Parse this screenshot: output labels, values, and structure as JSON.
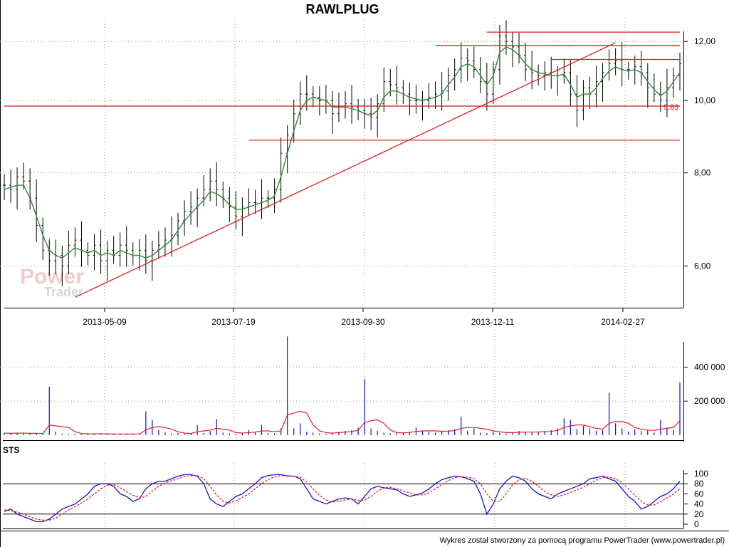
{
  "chart_data": [
    {
      "type": "line",
      "panel": "price",
      "title": "RAWLPLUG",
      "x_tick_labels": [
        "2013-05-09",
        "2013-07-19",
        "2013-09-30",
        "2013-12-11",
        "2014-02-27"
      ],
      "y_tick_labels": [
        "6,00",
        "8,00",
        "10,00",
        "12,00"
      ],
      "y_ticks": [
        6,
        8,
        10,
        12
      ],
      "ylim": [
        5.3,
        12.6
      ],
      "scale": "log",
      "grid": true,
      "current_value_label": "9,83",
      "series": [
        {
          "style": "ohlc-bars",
          "color": "#000000",
          "close": [
            7.7,
            7.6,
            7.9,
            7.8,
            7.4,
            6.8,
            6.3,
            6.1,
            6.2,
            6.0,
            6.4,
            6.5,
            6.3,
            6.2,
            6.4,
            6.1,
            6.3,
            6.2,
            6.4,
            6.3,
            6.2,
            6.3,
            6.1,
            6.3,
            6.4,
            6.5,
            6.6,
            6.9,
            7.1,
            7.2,
            7.4,
            7.6,
            7.8,
            7.6,
            7.4,
            7.2,
            7.0,
            7.2,
            7.3,
            7.3,
            7.4,
            7.4,
            7.6,
            8.5,
            9.0,
            9.6,
            10.2,
            10.2,
            10.1,
            10.0,
            10.0,
            9.6,
            9.8,
            9.9,
            9.8,
            9.7,
            9.6,
            9.5,
            9.9,
            10.6,
            10.5,
            10.4,
            10.2,
            10.0,
            10.0,
            10.0,
            10.1,
            10.2,
            10.3,
            10.8,
            11.0,
            11.4,
            11.3,
            11.0,
            10.6,
            10.2,
            11.0,
            12.2,
            12.0,
            11.8,
            11.5,
            11.0,
            10.9,
            10.8,
            10.9,
            10.8,
            10.8,
            10.9,
            10.2,
            9.7,
            10.4,
            10.2,
            10.6,
            10.9,
            11.2,
            11.3,
            11.0,
            11.0,
            11.1,
            10.9,
            10.4,
            10.2,
            10.0,
            10.4,
            10.8,
            11.2
          ]
        },
        {
          "name": "",
          "style": "moving-average",
          "color": "#2e8b2e",
          "values": [
            7.6,
            7.65,
            7.7,
            7.7,
            7.4,
            7.0,
            6.6,
            6.3,
            6.2,
            6.15,
            6.25,
            6.35,
            6.3,
            6.25,
            6.3,
            6.2,
            6.25,
            6.2,
            6.3,
            6.25,
            6.2,
            6.2,
            6.15,
            6.2,
            6.3,
            6.4,
            6.5,
            6.7,
            6.9,
            7.05,
            7.2,
            7.35,
            7.55,
            7.5,
            7.4,
            7.25,
            7.15,
            7.15,
            7.2,
            7.25,
            7.3,
            7.35,
            7.45,
            7.9,
            8.5,
            9.1,
            9.7,
            10.0,
            10.1,
            10.05,
            10.0,
            9.8,
            9.8,
            9.8,
            9.75,
            9.7,
            9.6,
            9.55,
            9.7,
            10.1,
            10.3,
            10.3,
            10.2,
            10.1,
            10.05,
            10.0,
            10.05,
            10.1,
            10.2,
            10.5,
            10.75,
            11.1,
            11.2,
            11.1,
            10.8,
            10.5,
            10.8,
            11.6,
            11.8,
            11.7,
            11.5,
            11.2,
            11.0,
            10.9,
            10.85,
            10.8,
            10.8,
            10.85,
            10.5,
            10.1,
            10.2,
            10.2,
            10.4,
            10.7,
            10.95,
            11.1,
            11.0,
            10.95,
            11.0,
            10.9,
            10.6,
            10.35,
            10.15,
            10.3,
            10.6,
            10.9
          ]
        }
      ],
      "annotation_lines": [
        {
          "kind": "trendline",
          "color": "#e02020",
          "from": [
            11,
            5.45
          ],
          "to": [
            95,
            11.95
          ]
        },
        {
          "kind": "horizontal",
          "color": "#e02020",
          "from": [
            0,
            9.83
          ],
          "to": [
            105,
            9.83
          ]
        },
        {
          "kind": "horizontal",
          "color": "#e02020",
          "from": [
            38,
            8.85
          ],
          "to": [
            105,
            8.85
          ]
        },
        {
          "kind": "horizontal",
          "color": "#e02020",
          "from": [
            67,
            11.85
          ],
          "to": [
            105,
            11.85
          ]
        },
        {
          "kind": "horizontal",
          "color": "#e02020",
          "from": [
            75,
            12.35
          ],
          "to": [
            105,
            12.35
          ]
        },
        {
          "kind": "horizontal",
          "color": "#e02020",
          "from": [
            85,
            11.35
          ],
          "to": [
            105,
            11.35
          ]
        }
      ]
    },
    {
      "type": "bar",
      "panel": "volume",
      "y_tick_labels": [
        "200 000",
        "400 000"
      ],
      "y_ticks": [
        200000,
        400000
      ],
      "ylim": [
        0,
        590000
      ],
      "series": [
        {
          "style": "bars",
          "color": "#1010c8",
          "values": [
            12000,
            9000,
            15000,
            11000,
            8000,
            10000,
            7000,
            285000,
            20000,
            8000,
            6000,
            9000,
            5000,
            7000,
            10000,
            6000,
            8000,
            5000,
            9000,
            6000,
            7000,
            8000,
            140000,
            90000,
            30000,
            15000,
            10000,
            12000,
            8000,
            9000,
            60000,
            12000,
            25000,
            95000,
            15000,
            10000,
            8000,
            12000,
            30000,
            20000,
            60000,
            14000,
            10000,
            40000,
            580000,
            40000,
            70000,
            20000,
            15000,
            10000,
            8000,
            12000,
            20000,
            25000,
            30000,
            45000,
            330000,
            40000,
            25000,
            15000,
            10000,
            12000,
            15000,
            20000,
            45000,
            25000,
            20000,
            15000,
            25000,
            30000,
            35000,
            110000,
            25000,
            40000,
            15000,
            12000,
            20000,
            15000,
            10000,
            12000,
            25000,
            20000,
            15000,
            18000,
            25000,
            30000,
            40000,
            100000,
            90000,
            35000,
            55000,
            40000,
            25000,
            30000,
            250000,
            70000,
            40000,
            20000,
            35000,
            25000,
            30000,
            15000,
            90000,
            45000,
            30000,
            310000
          ]
        },
        {
          "name": "",
          "style": "moving-average",
          "color": "#e02020",
          "values": [
            12000,
            11000,
            12000,
            12000,
            11000,
            11000,
            10000,
            60000,
            55000,
            50000,
            45000,
            20000,
            10000,
            8000,
            8000,
            8000,
            8000,
            7000,
            7000,
            7000,
            7000,
            7000,
            30000,
            45000,
            50000,
            45000,
            35000,
            20000,
            12000,
            10000,
            20000,
            25000,
            30000,
            40000,
            35000,
            30000,
            15000,
            12000,
            15000,
            18000,
            25000,
            25000,
            20000,
            25000,
            120000,
            130000,
            140000,
            130000,
            60000,
            25000,
            15000,
            12000,
            15000,
            18000,
            22000,
            28000,
            75000,
            85000,
            90000,
            70000,
            30000,
            15000,
            14000,
            16000,
            22000,
            25000,
            26000,
            25000,
            23000,
            24000,
            27000,
            40000,
            45000,
            45000,
            40000,
            35000,
            25000,
            20000,
            15000,
            15000,
            17000,
            18000,
            18000,
            19000,
            20000,
            22000,
            28000,
            45000,
            55000,
            60000,
            60000,
            50000,
            40000,
            35000,
            70000,
            80000,
            80000,
            70000,
            45000,
            35000,
            30000,
            28000,
            35000,
            40000,
            45000,
            85000
          ]
        }
      ]
    },
    {
      "type": "line",
      "panel": "oscillator",
      "title": "STS",
      "y_tick_labels": [
        "0",
        "20",
        "40",
        "60",
        "80",
        "100"
      ],
      "y_ticks": [
        0,
        20,
        40,
        60,
        80,
        100
      ],
      "ylim": [
        -5,
        105
      ],
      "reference_lines": [
        20,
        80
      ],
      "series": [
        {
          "name": "",
          "color": "#1414d2",
          "values": [
            25,
            30,
            20,
            15,
            10,
            5,
            5,
            10,
            20,
            30,
            35,
            40,
            50,
            60,
            75,
            80,
            80,
            75,
            60,
            55,
            45,
            50,
            70,
            80,
            85,
            85,
            90,
            95,
            98,
            98,
            95,
            80,
            50,
            40,
            35,
            45,
            55,
            60,
            70,
            80,
            92,
            96,
            98,
            98,
            95,
            95,
            90,
            70,
            50,
            45,
            40,
            45,
            50,
            52,
            50,
            40,
            55,
            70,
            75,
            72,
            70,
            68,
            60,
            55,
            58,
            62,
            70,
            80,
            88,
            92,
            95,
            94,
            90,
            85,
            60,
            20,
            40,
            70,
            85,
            95,
            92,
            85,
            70,
            60,
            55,
            50,
            60,
            65,
            70,
            75,
            80,
            90,
            92,
            95,
            90,
            85,
            70,
            55,
            45,
            30,
            35,
            45,
            55,
            60,
            70,
            85
          ]
        },
        {
          "name": "",
          "color": "#e02020",
          "values": [
            28,
            27,
            24,
            20,
            15,
            10,
            8,
            8,
            12,
            20,
            28,
            35,
            42,
            50,
            60,
            70,
            77,
            78,
            72,
            65,
            57,
            52,
            55,
            65,
            75,
            82,
            86,
            90,
            94,
            96,
            96,
            90,
            75,
            58,
            45,
            42,
            46,
            53,
            60,
            70,
            80,
            88,
            94,
            96,
            96,
            95,
            93,
            84,
            70,
            57,
            48,
            44,
            45,
            48,
            50,
            47,
            48,
            55,
            65,
            72,
            73,
            70,
            66,
            62,
            58,
            58,
            62,
            70,
            78,
            86,
            92,
            94,
            93,
            90,
            80,
            60,
            45,
            45,
            60,
            78,
            88,
            91,
            85,
            75,
            65,
            58,
            55,
            58,
            63,
            68,
            73,
            80,
            87,
            92,
            93,
            90,
            82,
            70,
            57,
            45,
            38,
            38,
            45,
            52,
            60,
            70
          ]
        }
      ]
    }
  ],
  "footer": {
    "credit": "Wykres został stworzony za pomocą programu PowerTrader (www.powertrader.pl)"
  },
  "watermark": {
    "line1": "Power",
    "line2": "Trader"
  },
  "colors": {
    "price_bars": "#000000",
    "price_ma": "#2e8b2e",
    "support_lines": "#e02020",
    "volume_bars": "#1010c8",
    "volume_ma": "#e02020",
    "sts_k": "#1414d2",
    "sts_d": "#e02020"
  }
}
